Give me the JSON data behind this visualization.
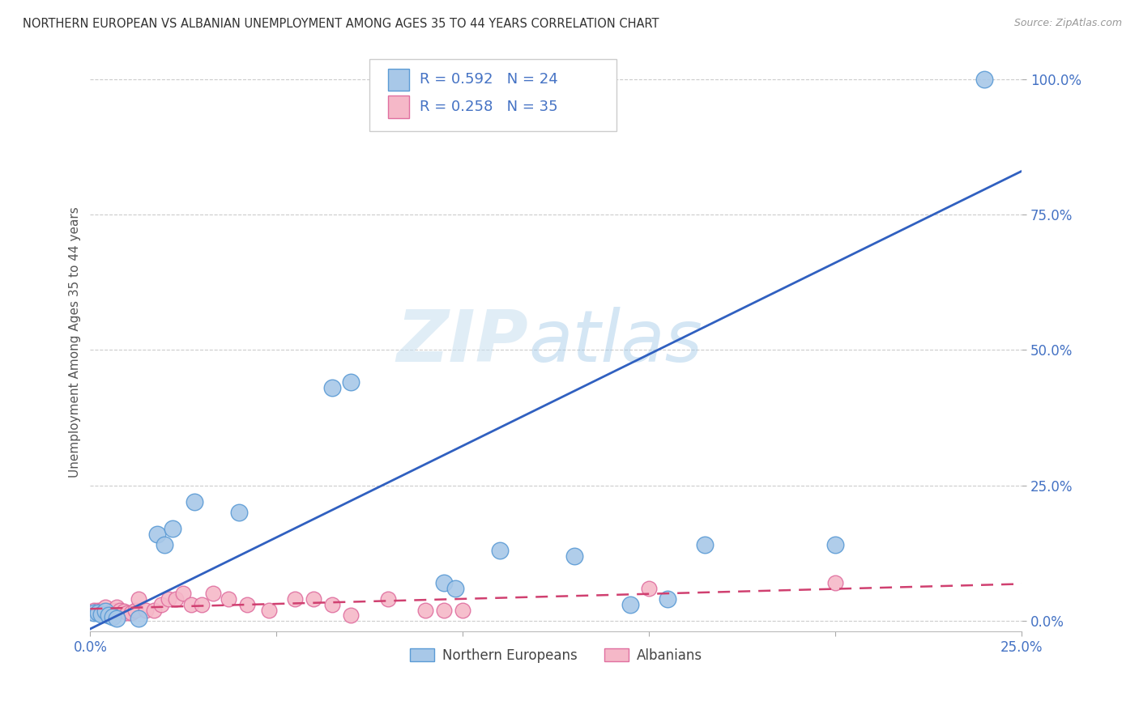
{
  "title": "NORTHERN EUROPEAN VS ALBANIAN UNEMPLOYMENT AMONG AGES 35 TO 44 YEARS CORRELATION CHART",
  "source": "Source: ZipAtlas.com",
  "ylabel": "Unemployment Among Ages 35 to 44 years",
  "xlim": [
    0.0,
    0.25
  ],
  "ylim": [
    -0.02,
    1.05
  ],
  "xticks": [
    0.0,
    0.05,
    0.1,
    0.15,
    0.2,
    0.25
  ],
  "xtick_labels": [
    "0.0%",
    "",
    "",
    "",
    "",
    "25.0%"
  ],
  "yticks": [
    0.0,
    0.25,
    0.5,
    0.75,
    1.0
  ],
  "ytick_labels": [
    "0.0%",
    "25.0%",
    "50.0%",
    "75.0%",
    "100.0%"
  ],
  "blue_scatter_x": [
    0.001,
    0.002,
    0.003,
    0.004,
    0.005,
    0.006,
    0.007,
    0.018,
    0.02,
    0.022,
    0.028,
    0.065,
    0.07,
    0.095,
    0.098,
    0.11,
    0.13,
    0.145,
    0.155,
    0.165,
    0.2,
    0.013,
    0.04,
    0.24
  ],
  "blue_scatter_y": [
    0.015,
    0.015,
    0.012,
    0.018,
    0.01,
    0.008,
    0.005,
    0.16,
    0.14,
    0.17,
    0.22,
    0.43,
    0.44,
    0.07,
    0.06,
    0.13,
    0.12,
    0.03,
    0.04,
    0.14,
    0.14,
    0.005,
    0.2,
    1.0
  ],
  "pink_scatter_x": [
    0.001,
    0.002,
    0.003,
    0.004,
    0.005,
    0.006,
    0.007,
    0.008,
    0.009,
    0.01,
    0.011,
    0.012,
    0.013,
    0.015,
    0.017,
    0.019,
    0.021,
    0.023,
    0.025,
    0.027,
    0.03,
    0.033,
    0.037,
    0.042,
    0.048,
    0.055,
    0.06,
    0.065,
    0.07,
    0.08,
    0.09,
    0.095,
    0.1,
    0.15,
    0.2
  ],
  "pink_scatter_y": [
    0.02,
    0.02,
    0.02,
    0.025,
    0.015,
    0.02,
    0.025,
    0.02,
    0.018,
    0.015,
    0.015,
    0.02,
    0.04,
    0.02,
    0.02,
    0.03,
    0.04,
    0.04,
    0.05,
    0.03,
    0.03,
    0.05,
    0.04,
    0.03,
    0.02,
    0.04,
    0.04,
    0.03,
    0.01,
    0.04,
    0.02,
    0.02,
    0.02,
    0.06,
    0.07
  ],
  "blue_color": "#a8c8e8",
  "blue_edge_color": "#5b9bd5",
  "pink_color": "#f5b8c8",
  "pink_edge_color": "#e070a0",
  "blue_line_color": "#3060c0",
  "pink_line_color": "#d04070",
  "blue_line_x0": 0.0,
  "blue_line_y0": -0.015,
  "blue_line_x1": 0.25,
  "blue_line_y1": 0.83,
  "pink_line_x0": 0.0,
  "pink_line_y0": 0.022,
  "pink_line_x1": 0.25,
  "pink_line_y1": 0.068,
  "R_blue": "0.592",
  "N_blue": "24",
  "R_pink": "0.258",
  "N_pink": "35",
  "legend_labels": [
    "Northern Europeans",
    "Albanians"
  ],
  "watermark_zip": "ZIP",
  "watermark_atlas": "atlas",
  "background_color": "#ffffff",
  "grid_color": "#cccccc",
  "tick_color": "#4472c4",
  "label_color": "#555555",
  "title_color": "#333333",
  "source_color": "#999999"
}
